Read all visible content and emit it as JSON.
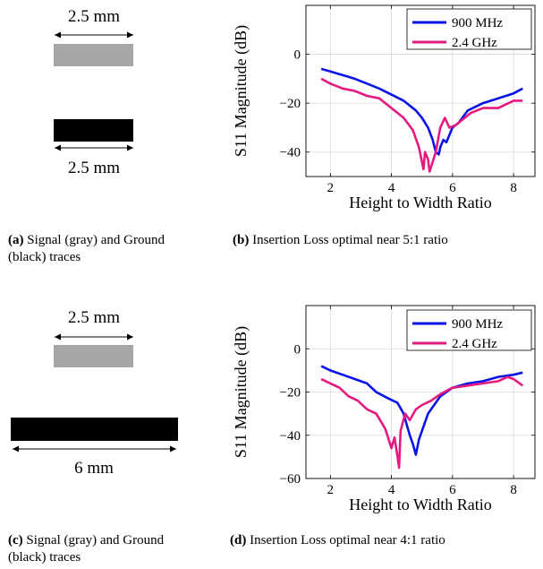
{
  "panels": {
    "a": {
      "top_dimension": "2.5 mm",
      "bottom_dimension": "2.5 mm",
      "caption_tag": "(a)",
      "caption_text": " Signal (gray) and Ground (black) traces"
    },
    "b": {
      "caption_tag": "(b)",
      "caption_text": " Insertion Loss optimal near 5:1 ratio"
    },
    "c": {
      "top_dimension": "2.5 mm",
      "bottom_dimension": "6 mm",
      "caption_tag": "(c)",
      "caption_text": " Signal (gray) and Ground (black) traces"
    },
    "d": {
      "caption_tag": "(d)",
      "caption_text": " Insertion Loss optimal near 4:1 ratio"
    }
  },
  "colors": {
    "signal_trace": "#a6a6a6",
    "ground_trace": "#000000",
    "series_900": "#0a14e6",
    "series_24": "#e6197f"
  },
  "chart_data": [
    {
      "type": "line",
      "xlabel": "Height to Width Ratio",
      "ylabel": "S11 Magnitude (dB)",
      "xlim": [
        1.2,
        8.7
      ],
      "ylim": [
        -50,
        20
      ],
      "xticks": [
        2,
        4,
        6,
        8
      ],
      "yticks": [
        0,
        -20,
        -40
      ],
      "grid": true,
      "legend_position": "top-right",
      "series": [
        {
          "name": "900 MHz",
          "x": [
            1.7,
            2.0,
            2.4,
            2.8,
            3.2,
            3.6,
            4.0,
            4.4,
            4.8,
            5.0,
            5.2,
            5.35,
            5.45,
            5.55,
            5.6,
            5.7,
            5.8,
            5.9,
            6.0,
            6.2,
            6.5,
            7.0,
            7.5,
            8.0,
            8.3
          ],
          "y": [
            -6,
            -7,
            -8.5,
            -10,
            -12,
            -14,
            -16.5,
            -19,
            -23,
            -26,
            -30,
            -35,
            -40,
            -41,
            -38,
            -35,
            -36,
            -33,
            -30,
            -28,
            -23,
            -20,
            -18,
            -16,
            -14
          ]
        },
        {
          "name": "2.4 GHz",
          "x": [
            1.7,
            2.0,
            2.4,
            2.8,
            3.2,
            3.6,
            4.0,
            4.4,
            4.7,
            4.9,
            5.0,
            5.05,
            5.1,
            5.2,
            5.25,
            5.35,
            5.45,
            5.6,
            5.75,
            5.9,
            6.1,
            6.3,
            6.6,
            7.0,
            7.5,
            8.0,
            8.3
          ],
          "y": [
            -10,
            -12,
            -14,
            -15,
            -17,
            -18,
            -22,
            -26,
            -31,
            -38,
            -44,
            -47,
            -40,
            -43,
            -48,
            -44,
            -40,
            -30,
            -26,
            -30,
            -29,
            -27,
            -24,
            -22,
            -22,
            -19,
            -19
          ]
        }
      ]
    },
    {
      "type": "line",
      "xlabel": "Height to Width Ratio",
      "ylabel": "S11 Magnitude (dB)",
      "xlim": [
        1.2,
        8.7
      ],
      "ylim": [
        -60,
        20
      ],
      "xticks": [
        2,
        4,
        6,
        8
      ],
      "yticks": [
        0,
        -20,
        -40,
        -60
      ],
      "grid": true,
      "legend_position": "top-right",
      "series": [
        {
          "name": "900 MHz",
          "x": [
            1.7,
            2.0,
            2.4,
            2.8,
            3.2,
            3.5,
            3.9,
            4.2,
            4.4,
            4.5,
            4.6,
            4.7,
            4.8,
            4.9,
            5.0,
            5.2,
            5.6,
            6.0,
            6.5,
            7.0,
            7.5,
            8.0,
            8.3
          ],
          "y": [
            -8,
            -10,
            -12,
            -14,
            -16,
            -20,
            -23,
            -25,
            -30,
            -35,
            -40,
            -44,
            -49,
            -42,
            -38,
            -30,
            -22,
            -18,
            -16,
            -15,
            -13,
            -12,
            -11
          ]
        },
        {
          "name": "2.4 GHz",
          "x": [
            1.7,
            2.0,
            2.3,
            2.6,
            2.9,
            3.2,
            3.5,
            3.8,
            4.0,
            4.1,
            4.2,
            4.25,
            4.3,
            4.45,
            4.6,
            4.8,
            5.0,
            5.3,
            5.6,
            6.0,
            6.5,
            7.0,
            7.5,
            7.8,
            8.0,
            8.3
          ],
          "y": [
            -14,
            -16,
            -18,
            -22,
            -24,
            -28,
            -30,
            -37,
            -46,
            -41,
            -50,
            -55,
            -38,
            -30,
            -33,
            -28,
            -26,
            -24,
            -21,
            -18,
            -17,
            -16,
            -15,
            -13,
            -14,
            -17
          ]
        }
      ]
    }
  ]
}
